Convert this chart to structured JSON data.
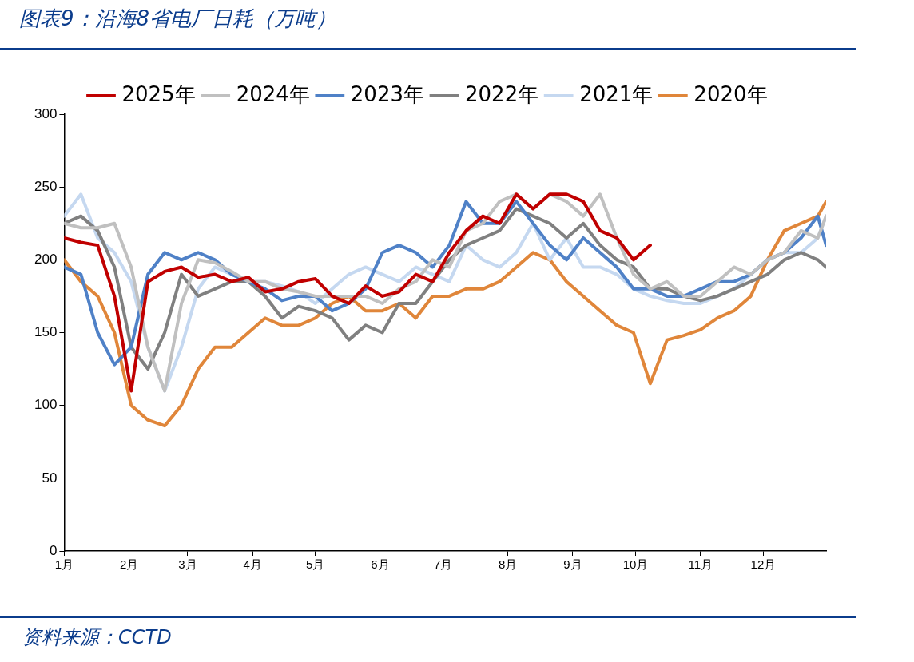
{
  "chart_data": {
    "type": "line",
    "title": "图表9：沿海8省电厂日耗（万吨）",
    "annotations": [
      "资料来源：CCTD"
    ],
    "x": [
      "--01-01",
      "--01-09",
      "--01-17",
      "--01-25",
      "--02-02",
      "--02-10",
      "--02-18",
      "--02-26",
      "--03-06",
      "--03-14",
      "--03-22",
      "--03-30",
      "--04-07",
      "--04-15",
      "--04-23",
      "--05-01",
      "--05-09",
      "--05-17",
      "--05-25",
      "--06-02",
      "--06-10",
      "--06-18",
      "--06-26",
      "--07-04",
      "--07-12",
      "--07-20",
      "--07-28",
      "--08-05",
      "--08-13",
      "--08-21",
      "--08-29",
      "--09-06",
      "--09-14",
      "--09-22",
      "--09-30",
      "--10-08",
      "--10-16",
      "--10-24",
      "--11-01",
      "--11-09",
      "--11-17",
      "--11-25",
      "--12-03",
      "--12-11",
      "--12-19",
      "--12-27",
      "--12-31"
    ],
    "series": [
      {
        "name": "2025年",
        "color": "#c00000",
        "values": [
          215,
          212,
          210,
          175,
          110,
          185,
          192,
          195,
          188,
          190,
          185,
          188,
          178,
          180,
          185,
          187,
          175,
          170,
          182,
          175,
          178,
          190,
          185,
          205,
          220,
          230,
          225,
          245,
          235,
          245,
          245,
          240,
          220,
          215,
          200,
          210,
          null,
          null,
          null,
          null,
          null,
          null,
          null,
          null,
          null,
          null,
          null
        ]
      },
      {
        "name": "2024年",
        "color": "#c0c0c0",
        "values": [
          225,
          222,
          222,
          225,
          195,
          140,
          110,
          170,
          200,
          198,
          192,
          185,
          185,
          180,
          178,
          175,
          175,
          175,
          175,
          170,
          180,
          185,
          200,
          195,
          220,
          225,
          240,
          245,
          235,
          245,
          240,
          230,
          245,
          215,
          190,
          180,
          185,
          175,
          175,
          185,
          195,
          190,
          200,
          205,
          220,
          215,
          230
        ]
      },
      {
        "name": "2023年",
        "color": "#4f81c7",
        "values": [
          195,
          190,
          150,
          128,
          140,
          190,
          205,
          200,
          205,
          200,
          190,
          185,
          180,
          172,
          175,
          175,
          165,
          170,
          180,
          205,
          210,
          205,
          195,
          210,
          240,
          225,
          225,
          240,
          225,
          210,
          200,
          215,
          205,
          195,
          180,
          180,
          175,
          175,
          180,
          185,
          185,
          190,
          200,
          205,
          215,
          230,
          210
        ]
      },
      {
        "name": "2022年",
        "color": "#808080",
        "values": [
          225,
          230,
          220,
          195,
          140,
          125,
          150,
          190,
          175,
          180,
          185,
          185,
          175,
          160,
          168,
          165,
          160,
          145,
          155,
          150,
          170,
          170,
          185,
          200,
          210,
          215,
          220,
          235,
          230,
          225,
          215,
          225,
          210,
          200,
          195,
          180,
          180,
          175,
          172,
          175,
          180,
          185,
          190,
          200,
          205,
          200,
          195
        ]
      },
      {
        "name": "2021年",
        "color": "#c5d8f0",
        "values": [
          230,
          245,
          215,
          205,
          185,
          140,
          110,
          140,
          180,
          195,
          190,
          185,
          185,
          182,
          178,
          170,
          180,
          190,
          195,
          190,
          185,
          195,
          190,
          185,
          210,
          200,
          195,
          205,
          225,
          200,
          215,
          195,
          195,
          190,
          180,
          175,
          172,
          170,
          170,
          175,
          180,
          190,
          200,
          205,
          205,
          215,
          230
        ]
      },
      {
        "name": "2020年",
        "color": "#e0863a",
        "values": [
          200,
          185,
          175,
          150,
          100,
          90,
          86,
          100,
          125,
          140,
          140,
          150,
          160,
          155,
          155,
          160,
          170,
          175,
          165,
          165,
          170,
          160,
          175,
          175,
          180,
          180,
          185,
          195,
          205,
          200,
          185,
          175,
          165,
          155,
          150,
          115,
          145,
          148,
          152,
          160,
          165,
          175,
          200,
          220,
          225,
          230,
          240
        ]
      }
    ],
    "xlim": [
      "--01-01",
      "--12-31"
    ],
    "xticks": [
      {
        "value": "--01-01",
        "label": "1月"
      },
      {
        "value": "--02-01",
        "label": "2月"
      },
      {
        "value": "--03-01",
        "label": "3月"
      },
      {
        "value": "--04-01",
        "label": "4月"
      },
      {
        "value": "--05-01",
        "label": "5月"
      },
      {
        "value": "--06-01",
        "label": "6月"
      },
      {
        "value": "--07-01",
        "label": "7月"
      },
      {
        "value": "--08-01",
        "label": "8月"
      },
      {
        "value": "--09-01",
        "label": "9月"
      },
      {
        "value": "--10-01",
        "label": "10月"
      },
      {
        "value": "--11-01",
        "label": "11月"
      },
      {
        "value": "--12-01",
        "label": "12月"
      }
    ],
    "ylim": [
      0,
      300
    ],
    "yticks": [
      0,
      50,
      100,
      150,
      200,
      250,
      300
    ],
    "grid": false,
    "legend": "top",
    "marker": "none",
    "line_style": "solid"
  }
}
